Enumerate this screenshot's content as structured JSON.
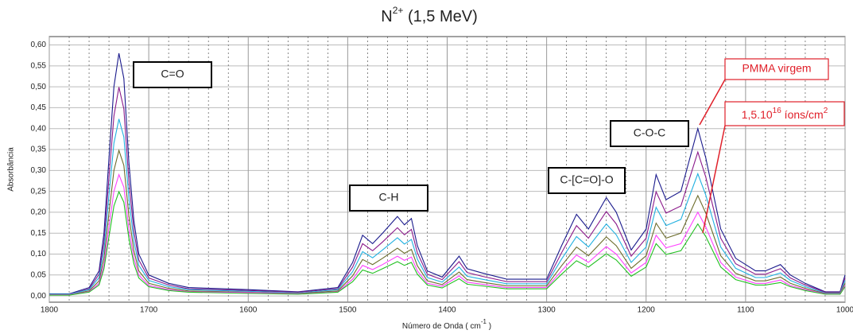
{
  "chart_data": {
    "type": "line",
    "title": {
      "base": "N",
      "sup": "2+",
      "rest": " (1,5 MeV)"
    },
    "xlabel": {
      "base": "Número de Onda ( cm",
      "sup": "-1",
      "rest": " )"
    },
    "ylabel": "Absorbância",
    "xlim": [
      1800,
      1000
    ],
    "ylim": [
      -0.015,
      0.62
    ],
    "xticks": [
      1800,
      1700,
      1600,
      1500,
      1400,
      1300,
      1200,
      1100,
      1000
    ],
    "x_minor_ticks": [
      1780,
      1760,
      1740,
      1720,
      1680,
      1660,
      1640,
      1620,
      1580,
      1560,
      1540,
      1520,
      1480,
      1460,
      1440,
      1420,
      1380,
      1360,
      1340,
      1320,
      1280,
      1260,
      1240,
      1220,
      1180,
      1160,
      1140,
      1120,
      1080,
      1060,
      1040,
      1020
    ],
    "yticks": [
      {
        "value": 0,
        "label": "0,00"
      },
      {
        "value": 0.05,
        "label": "0,05"
      },
      {
        "value": 0.1,
        "label": "0,10"
      },
      {
        "value": 0.15,
        "label": "0,15"
      },
      {
        "value": 0.2,
        "label": "0,20"
      },
      {
        "value": 0.25,
        "label": "0,25"
      },
      {
        "value": 0.3,
        "label": "0,30"
      },
      {
        "value": 0.35,
        "label": "0,35"
      },
      {
        "value": 0.4,
        "label": "0,40"
      },
      {
        "value": 0.45,
        "label": "0,45"
      },
      {
        "value": 0.5,
        "label": "0,50"
      },
      {
        "value": 0.55,
        "label": "0,55"
      },
      {
        "value": 0.6,
        "label": "0,60"
      }
    ],
    "grid": true,
    "x": [
      1800,
      1780,
      1760,
      1750,
      1745,
      1740,
      1735,
      1730,
      1725,
      1720,
      1715,
      1710,
      1700,
      1680,
      1660,
      1600,
      1550,
      1510,
      1495,
      1485,
      1475,
      1465,
      1450,
      1443,
      1436,
      1430,
      1420,
      1405,
      1388,
      1380,
      1365,
      1340,
      1300,
      1285,
      1270,
      1258,
      1240,
      1230,
      1215,
      1200,
      1190,
      1180,
      1165,
      1148,
      1140,
      1125,
      1110,
      1090,
      1080,
      1065,
      1055,
      1040,
      1020,
      1005,
      1000
    ],
    "series": [
      {
        "color": "#1a1a8c",
        "values": [
          0.005,
          0.005,
          0.02,
          0.06,
          0.15,
          0.33,
          0.5,
          0.58,
          0.52,
          0.32,
          0.18,
          0.1,
          0.05,
          0.03,
          0.02,
          0.015,
          0.01,
          0.02,
          0.08,
          0.145,
          0.125,
          0.15,
          0.19,
          0.17,
          0.185,
          0.12,
          0.06,
          0.045,
          0.095,
          0.065,
          0.055,
          0.04,
          0.04,
          0.12,
          0.195,
          0.16,
          0.235,
          0.2,
          0.11,
          0.16,
          0.29,
          0.23,
          0.25,
          0.4,
          0.33,
          0.16,
          0.09,
          0.06,
          0.06,
          0.075,
          0.05,
          0.03,
          0.01,
          0.01,
          0.05
        ]
      },
      {
        "color": "#8b1a8b",
        "values": [
          0.004,
          0.004,
          0.017,
          0.052,
          0.129,
          0.284,
          0.43,
          0.499,
          0.447,
          0.275,
          0.155,
          0.086,
          0.043,
          0.026,
          0.017,
          0.013,
          0.009,
          0.017,
          0.069,
          0.125,
          0.108,
          0.129,
          0.163,
          0.146,
          0.159,
          0.103,
          0.052,
          0.039,
          0.082,
          0.056,
          0.047,
          0.034,
          0.034,
          0.103,
          0.168,
          0.138,
          0.202,
          0.172,
          0.095,
          0.138,
          0.249,
          0.198,
          0.215,
          0.344,
          0.284,
          0.138,
          0.077,
          0.052,
          0.052,
          0.065,
          0.043,
          0.026,
          0.009,
          0.009,
          0.043
        ]
      },
      {
        "color": "#20b0e0",
        "values": [
          0.004,
          0.004,
          0.015,
          0.044,
          0.11,
          0.241,
          0.365,
          0.423,
          0.38,
          0.234,
          0.131,
          0.073,
          0.037,
          0.022,
          0.015,
          0.011,
          0.007,
          0.015,
          0.058,
          0.106,
          0.091,
          0.11,
          0.139,
          0.124,
          0.135,
          0.088,
          0.044,
          0.033,
          0.069,
          0.047,
          0.04,
          0.029,
          0.029,
          0.088,
          0.142,
          0.117,
          0.172,
          0.146,
          0.08,
          0.117,
          0.212,
          0.168,
          0.183,
          0.292,
          0.241,
          0.117,
          0.066,
          0.044,
          0.044,
          0.055,
          0.037,
          0.022,
          0.007,
          0.007,
          0.037
        ]
      },
      {
        "color": "#6b6b2a",
        "values": [
          0.003,
          0.003,
          0.012,
          0.036,
          0.09,
          0.198,
          0.3,
          0.348,
          0.312,
          0.192,
          0.108,
          0.06,
          0.03,
          0.018,
          0.012,
          0.009,
          0.006,
          0.012,
          0.048,
          0.087,
          0.075,
          0.09,
          0.114,
          0.102,
          0.111,
          0.072,
          0.036,
          0.027,
          0.057,
          0.039,
          0.033,
          0.024,
          0.024,
          0.072,
          0.117,
          0.096,
          0.141,
          0.12,
          0.066,
          0.096,
          0.174,
          0.138,
          0.15,
          0.24,
          0.198,
          0.096,
          0.054,
          0.036,
          0.036,
          0.045,
          0.03,
          0.018,
          0.006,
          0.006,
          0.03
        ]
      },
      {
        "color": "#ff40ff",
        "values": [
          0.003,
          0.003,
          0.01,
          0.03,
          0.075,
          0.165,
          0.25,
          0.29,
          0.26,
          0.16,
          0.09,
          0.05,
          0.025,
          0.015,
          0.01,
          0.008,
          0.005,
          0.01,
          0.04,
          0.073,
          0.063,
          0.075,
          0.095,
          0.085,
          0.093,
          0.06,
          0.03,
          0.023,
          0.048,
          0.033,
          0.028,
          0.02,
          0.02,
          0.06,
          0.098,
          0.08,
          0.118,
          0.1,
          0.055,
          0.08,
          0.145,
          0.115,
          0.125,
          0.2,
          0.165,
          0.08,
          0.045,
          0.03,
          0.03,
          0.038,
          0.025,
          0.015,
          0.005,
          0.005,
          0.025
        ]
      },
      {
        "color": "#20c020",
        "values": [
          0.002,
          0.002,
          0.009,
          0.026,
          0.065,
          0.142,
          0.215,
          0.249,
          0.224,
          0.138,
          0.077,
          0.043,
          0.022,
          0.013,
          0.009,
          0.006,
          0.004,
          0.009,
          0.034,
          0.062,
          0.054,
          0.065,
          0.082,
          0.073,
          0.08,
          0.052,
          0.026,
          0.019,
          0.041,
          0.028,
          0.024,
          0.017,
          0.017,
          0.052,
          0.084,
          0.069,
          0.101,
          0.086,
          0.047,
          0.069,
          0.125,
          0.099,
          0.108,
          0.172,
          0.142,
          0.069,
          0.039,
          0.026,
          0.026,
          0.032,
          0.022,
          0.013,
          0.004,
          0.004,
          0.022
        ]
      }
    ],
    "annotations": [
      {
        "text": "C=O"
      },
      {
        "text": "C-H"
      },
      {
        "text": "C-[C=O]-O"
      },
      {
        "text": "C-O-C"
      },
      {
        "text": "PMMA virgem",
        "color": "#e0202a"
      },
      {
        "text": {
          "a": "1,5.10",
          "b": "16",
          "c": " íons/cm",
          "d": "2"
        },
        "color": "#e0202a"
      }
    ]
  }
}
